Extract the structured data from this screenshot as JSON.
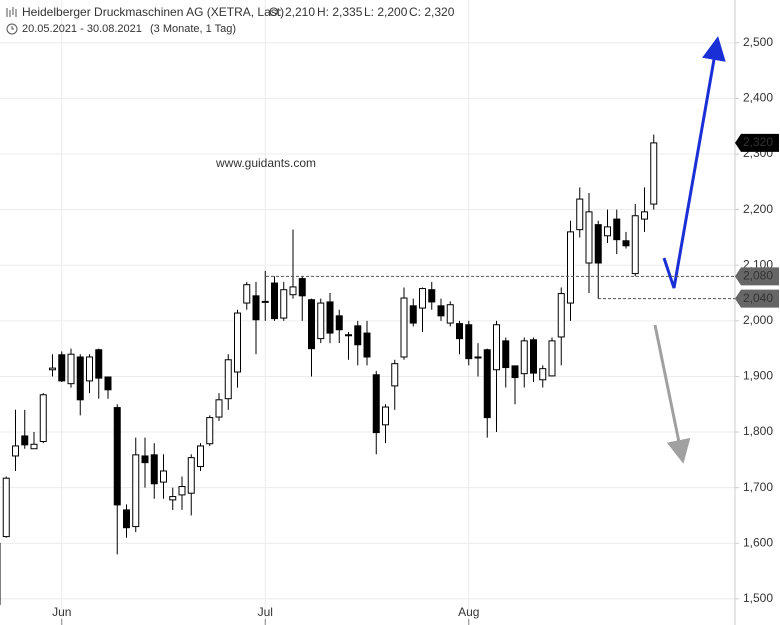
{
  "chart_data": {
    "type": "candlestick",
    "title": "Heidelberger Druckmaschinen AG (XETRA, Last)",
    "quote": [
      "O: 2,210",
      "H: 2,335",
      "L: 2,200",
      "C: 2,320"
    ],
    "date_range": "20.05.2021 - 30.08.2021",
    "period": "(3 Monate, 1 Tag)",
    "watermark": "www.guidants.com",
    "categories": [
      null,
      null,
      null,
      null,
      null,
      null,
      null,
      "Jun",
      null,
      null,
      null,
      null,
      null,
      null,
      null,
      null,
      null,
      null,
      null,
      null,
      null,
      null,
      null,
      null,
      null,
      null,
      null,
      null,
      null,
      "Jul",
      null,
      null,
      null,
      null,
      null,
      null,
      null,
      null,
      null,
      null,
      null,
      null,
      null,
      null,
      null,
      null,
      null,
      null,
      null,
      null,
      null,
      "Aug",
      null,
      null,
      null,
      null,
      null,
      null,
      null,
      null,
      null,
      null,
      null,
      null,
      null,
      null,
      null,
      null,
      null,
      null,
      null,
      null
    ],
    "open": [
      1.6,
      1.612,
      1.757,
      1.793,
      1.77,
      1.783,
      1.912,
      1.939,
      1.887,
      1.935,
      1.892,
      1.948,
      1.899,
      1.844,
      1.66,
      1.63,
      1.757,
      1.759,
      1.71,
      1.678,
      1.687,
      1.69,
      1.738,
      1.779,
      1.827,
      1.86,
      1.908,
      2.032,
      2.045,
      2.035,
      2.068,
      2.005,
      2.047,
      2.076,
      2.038,
      1.968,
      2.034,
      2.009,
      1.975,
      1.991,
      1.978,
      1.903,
      1.813,
      1.883,
      1.935,
      2.027,
      2.023,
      2.056,
      2.027,
      1.996,
      1.995,
      1.993,
      1.935,
      1.948,
      1.912,
      1.964,
      1.919,
      1.905,
      1.966,
      1.894,
      1.901,
      1.971,
      2.032,
      2.164,
      2.104,
      2.173,
      2.153,
      2.183,
      2.144,
      2.085,
      2.183,
      2.21
    ],
    "high": [
      1.63,
      1.72,
      1.84,
      1.84,
      1.8,
      1.87,
      1.94,
      1.945,
      1.95,
      1.94,
      1.94,
      1.95,
      1.9,
      1.85,
      1.67,
      1.79,
      1.79,
      1.78,
      1.76,
      1.7,
      1.72,
      1.76,
      1.78,
      1.83,
      1.87,
      1.94,
      2.02,
      2.07,
      2.07,
      2.09,
      2.08,
      2.07,
      2.164,
      2.08,
      2.04,
      2.04,
      2.05,
      2.02,
      1.98,
      2.0,
      2.0,
      1.91,
      1.85,
      1.93,
      2.06,
      2.04,
      2.06,
      2.07,
      2.04,
      2.035,
      2.0,
      2.0,
      1.96,
      1.95,
      2.0,
      1.97,
      1.92,
      1.97,
      1.97,
      1.92,
      1.97,
      2.06,
      2.18,
      2.24,
      2.23,
      2.18,
      2.2,
      2.2,
      2.16,
      2.21,
      2.24,
      2.335
    ],
    "low": [
      1.47,
      1.61,
      1.73,
      1.77,
      1.77,
      1.78,
      1.9,
      1.89,
      1.88,
      1.83,
      1.87,
      1.86,
      1.86,
      1.58,
      1.61,
      1.62,
      1.7,
      1.68,
      1.68,
      1.66,
      1.66,
      1.65,
      1.73,
      1.775,
      1.82,
      1.84,
      1.88,
      2.02,
      1.94,
      2.0,
      2.0,
      2.0,
      2.04,
      2.0,
      1.9,
      1.96,
      1.96,
      1.96,
      1.93,
      1.92,
      1.92,
      1.76,
      1.78,
      1.84,
      1.93,
      1.99,
      1.98,
      2.02,
      2.0,
      1.99,
      1.94,
      1.92,
      1.9,
      1.79,
      1.8,
      1.88,
      1.85,
      1.88,
      1.89,
      1.88,
      1.9,
      1.92,
      2.0,
      2.15,
      2.05,
      2.04,
      2.14,
      2.12,
      2.13,
      2.08,
      2.16,
      2.2
    ],
    "close": [
      1.49,
      1.717,
      1.775,
      1.777,
      1.778,
      1.867,
      1.915,
      1.892,
      1.94,
      1.858,
      1.935,
      1.897,
      1.876,
      1.669,
      1.628,
      1.759,
      1.745,
      1.707,
      1.73,
      1.684,
      1.702,
      1.754,
      1.775,
      1.826,
      1.858,
      1.93,
      2.014,
      2.065,
      2.002,
      2.035,
      2.004,
      2.056,
      2.061,
      2.045,
      1.95,
      2.032,
      1.978,
      1.984,
      1.975,
      1.957,
      1.935,
      1.799,
      1.845,
      1.923,
      2.041,
      1.996,
      2.058,
      2.034,
      2.009,
      2.029,
      1.968,
      1.932,
      1.935,
      1.826,
      1.993,
      1.916,
      1.898,
      1.964,
      1.906,
      1.914,
      1.964,
      2.049,
      2.16,
      2.219,
      2.196,
      2.104,
      2.169,
      2.146,
      2.135,
      2.189,
      2.196,
      2.32
    ],
    "up_color": "#ffffff",
    "down_color": "#000000",
    "ylim": [
      1.453,
      2.577
    ],
    "yticks": [
      {
        "value": 1.5,
        "label": "1,500"
      },
      {
        "value": 1.6,
        "label": "1,600"
      },
      {
        "value": 1.7,
        "label": "1,700"
      },
      {
        "value": 1.8,
        "label": "1,800"
      },
      {
        "value": 1.9,
        "label": "1,900"
      },
      {
        "value": 2.0,
        "label": "2,000"
      },
      {
        "value": 2.1,
        "label": "2,100"
      },
      {
        "value": 2.2,
        "label": "2,200"
      },
      {
        "value": 2.3,
        "label": "2,300"
      },
      {
        "value": 2.4,
        "label": "2,400"
      },
      {
        "value": 2.5,
        "label": "2,500"
      }
    ],
    "levels": [
      {
        "value": 2.08,
        "label": "2,080"
      },
      {
        "value": 2.04,
        "label": "2,040"
      }
    ],
    "last_price": {
      "value": 2.32,
      "label": "2,320"
    },
    "grid": true
  }
}
